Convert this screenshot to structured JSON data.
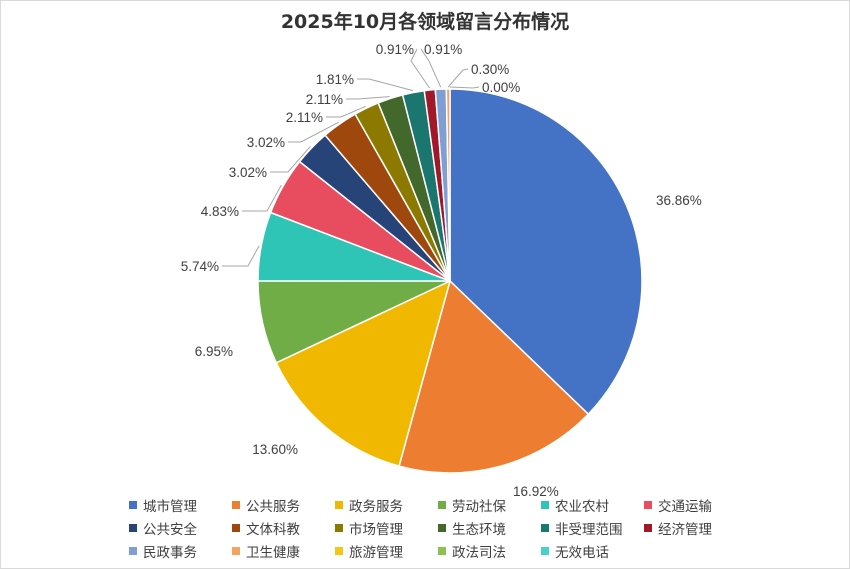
{
  "chart_data": {
    "type": "pie",
    "title": "2025年10月各领域留言分布情况",
    "legend_position": "bottom",
    "slices": [
      {
        "name": "城市管理",
        "value": 36.86,
        "label": "36.86%",
        "color": "#4472C4"
      },
      {
        "name": "公共服务",
        "value": 16.92,
        "label": "16.92%",
        "color": "#ED7D31"
      },
      {
        "name": "政务服务",
        "value": 13.6,
        "label": "13.60%",
        "color": "#F0B800"
      },
      {
        "name": "劳动社保",
        "value": 6.95,
        "label": "6.95%",
        "color": "#70AD47"
      },
      {
        "name": "农业农村",
        "value": 5.74,
        "label": "5.74%",
        "color": "#2EC4B6"
      },
      {
        "name": "交通运输",
        "value": 4.83,
        "label": "4.83%",
        "color": "#E84C5F"
      },
      {
        "name": "公共安全",
        "value": 3.02,
        "label": "3.02%",
        "color": "#264478"
      },
      {
        "name": "文体科教",
        "value": 3.02,
        "label": "3.02%",
        "color": "#9E480E"
      },
      {
        "name": "市场管理",
        "value": 2.11,
        "label": "2.11%",
        "color": "#8C7A00"
      },
      {
        "name": "生态环境",
        "value": 2.11,
        "label": "2.11%",
        "color": "#43682B"
      },
      {
        "name": "非受理范围",
        "value": 1.81,
        "label": "1.81%",
        "color": "#1B7670"
      },
      {
        "name": "经济管理",
        "value": 0.91,
        "label": "0.91%",
        "color": "#A1182B"
      },
      {
        "name": "民政事务",
        "value": 0.91,
        "label": "0.91%",
        "color": "#7F9ED4"
      },
      {
        "name": "卫生健康",
        "value": 0.3,
        "label": "0.30%",
        "color": "#F4A460"
      },
      {
        "name": "旅游管理",
        "value": 0.0,
        "label": "0.00%",
        "color": "#F5C518"
      },
      {
        "name": "政法司法",
        "value": 0.0,
        "label": "",
        "color": "#8CC152"
      },
      {
        "name": "无效电话",
        "value": 0.0,
        "label": "",
        "color": "#48D1CC"
      }
    ]
  }
}
